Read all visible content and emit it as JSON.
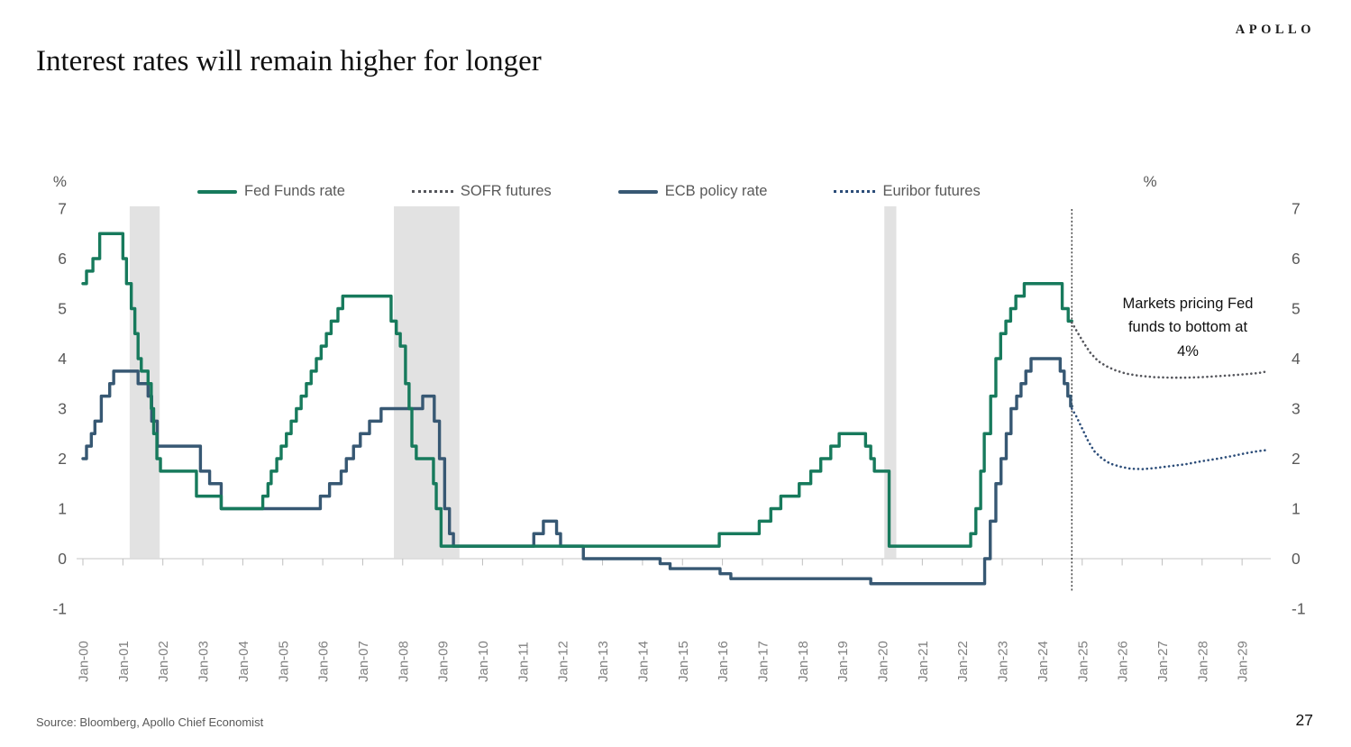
{
  "header": {
    "logo": "APOLLO",
    "title": "Interest rates will remain higher for longer"
  },
  "annotation": {
    "line1": "Markets pricing Fed",
    "line2": "funds to bottom at",
    "line3": "4%"
  },
  "footer": {
    "source": "Source: Bloomberg, Apollo Chief Economist",
    "page_number": "27"
  },
  "chart_data": {
    "type": "line",
    "title": "Interest rates will remain higher for longer",
    "y_unit_label": "%",
    "y_ticks": [
      7,
      6,
      5,
      4,
      3,
      2,
      1,
      0,
      -1
    ],
    "ylim": [
      -1,
      7
    ],
    "x_ticks": [
      "Jan-00",
      "Jan-01",
      "Jan-02",
      "Jan-03",
      "Jan-04",
      "Jan-05",
      "Jan-06",
      "Jan-07",
      "Jan-08",
      "Jan-09",
      "Jan-10",
      "Jan-11",
      "Jan-12",
      "Jan-13",
      "Jan-14",
      "Jan-15",
      "Jan-16",
      "Jan-17",
      "Jan-18",
      "Jan-19",
      "Jan-20",
      "Jan-21",
      "Jan-22",
      "Jan-23",
      "Jan-24",
      "Jan-25",
      "Jan-26",
      "Jan-27",
      "Jan-28",
      "Jan-29"
    ],
    "xlim": [
      1999.85,
      2029.75
    ],
    "grid": "baseline-only",
    "legend_position": "top",
    "recession_band_color": "#E2E2E2",
    "baseline_color": "#D9D9D9",
    "tick_color": "#BFBFBF",
    "axis_text_color": "#595959",
    "x_label_color": "#808080",
    "recession_bands": [
      [
        2001.17,
        2001.92
      ],
      [
        2007.78,
        2009.42
      ],
      [
        2020.05,
        2020.35
      ]
    ],
    "forecast_divider_year": 2024.74,
    "series": [
      {
        "name": "Fed Funds rate",
        "style": "solid",
        "color": "#177A5C",
        "points": [
          [
            2000.0,
            5.5
          ],
          [
            2000.09,
            5.75
          ],
          [
            2000.25,
            6.0
          ],
          [
            2000.42,
            6.5
          ],
          [
            2001.0,
            6.0
          ],
          [
            2001.09,
            5.5
          ],
          [
            2001.21,
            5.0
          ],
          [
            2001.3,
            4.5
          ],
          [
            2001.38,
            4.0
          ],
          [
            2001.46,
            3.75
          ],
          [
            2001.63,
            3.5
          ],
          [
            2001.71,
            3.0
          ],
          [
            2001.77,
            2.5
          ],
          [
            2001.85,
            2.0
          ],
          [
            2001.94,
            1.75
          ],
          [
            2002.84,
            1.25
          ],
          [
            2003.46,
            1.0
          ],
          [
            2004.5,
            1.25
          ],
          [
            2004.63,
            1.5
          ],
          [
            2004.71,
            1.75
          ],
          [
            2004.85,
            2.0
          ],
          [
            2004.96,
            2.25
          ],
          [
            2005.09,
            2.5
          ],
          [
            2005.21,
            2.75
          ],
          [
            2005.34,
            3.0
          ],
          [
            2005.46,
            3.25
          ],
          [
            2005.59,
            3.5
          ],
          [
            2005.71,
            3.75
          ],
          [
            2005.84,
            4.0
          ],
          [
            2005.96,
            4.25
          ],
          [
            2006.09,
            4.5
          ],
          [
            2006.21,
            4.75
          ],
          [
            2006.38,
            5.0
          ],
          [
            2006.5,
            5.25
          ],
          [
            2007.71,
            4.75
          ],
          [
            2007.84,
            4.5
          ],
          [
            2007.94,
            4.25
          ],
          [
            2008.07,
            3.5
          ],
          [
            2008.16,
            3.0
          ],
          [
            2008.23,
            2.25
          ],
          [
            2008.34,
            2.0
          ],
          [
            2008.77,
            1.5
          ],
          [
            2008.84,
            1.0
          ],
          [
            2008.96,
            0.25
          ],
          [
            2015.92,
            0.5
          ],
          [
            2016.92,
            0.75
          ],
          [
            2017.21,
            1.0
          ],
          [
            2017.46,
            1.25
          ],
          [
            2017.92,
            1.5
          ],
          [
            2018.21,
            1.75
          ],
          [
            2018.46,
            2.0
          ],
          [
            2018.71,
            2.25
          ],
          [
            2018.92,
            2.5
          ],
          [
            2019.58,
            2.25
          ],
          [
            2019.71,
            2.0
          ],
          [
            2019.8,
            1.75
          ],
          [
            2020.17,
            0.25
          ],
          [
            2022.21,
            0.5
          ],
          [
            2022.34,
            1.0
          ],
          [
            2022.46,
            1.75
          ],
          [
            2022.55,
            2.5
          ],
          [
            2022.71,
            3.25
          ],
          [
            2022.84,
            4.0
          ],
          [
            2022.96,
            4.5
          ],
          [
            2023.09,
            4.75
          ],
          [
            2023.21,
            5.0
          ],
          [
            2023.34,
            5.25
          ],
          [
            2023.55,
            5.5
          ],
          [
            2024.5,
            5.0
          ],
          [
            2024.65,
            4.75
          ],
          [
            2024.74,
            4.75
          ]
        ]
      },
      {
        "name": "SOFR futures",
        "style": "dotted",
        "color": "#54555B",
        "points": [
          [
            2024.74,
            4.72
          ],
          [
            2024.9,
            4.5
          ],
          [
            2025.05,
            4.3
          ],
          [
            2025.2,
            4.12
          ],
          [
            2025.4,
            3.95
          ],
          [
            2025.6,
            3.85
          ],
          [
            2025.85,
            3.76
          ],
          [
            2026.1,
            3.7
          ],
          [
            2026.4,
            3.66
          ],
          [
            2026.8,
            3.63
          ],
          [
            2027.2,
            3.62
          ],
          [
            2027.6,
            3.62
          ],
          [
            2028.0,
            3.63
          ],
          [
            2028.4,
            3.65
          ],
          [
            2028.8,
            3.67
          ],
          [
            2029.1,
            3.69
          ],
          [
            2029.4,
            3.71
          ],
          [
            2029.6,
            3.74
          ]
        ]
      },
      {
        "name": "ECB policy rate",
        "style": "solid",
        "color": "#375873",
        "points": [
          [
            2000.0,
            2.0
          ],
          [
            2000.09,
            2.25
          ],
          [
            2000.21,
            2.5
          ],
          [
            2000.3,
            2.75
          ],
          [
            2000.46,
            3.25
          ],
          [
            2000.67,
            3.5
          ],
          [
            2000.77,
            3.75
          ],
          [
            2001.38,
            3.5
          ],
          [
            2001.63,
            3.25
          ],
          [
            2001.72,
            2.75
          ],
          [
            2001.86,
            2.25
          ],
          [
            2002.94,
            1.75
          ],
          [
            2003.17,
            1.5
          ],
          [
            2003.46,
            1.0
          ],
          [
            2005.94,
            1.25
          ],
          [
            2006.17,
            1.5
          ],
          [
            2006.46,
            1.75
          ],
          [
            2006.59,
            2.0
          ],
          [
            2006.77,
            2.25
          ],
          [
            2006.94,
            2.5
          ],
          [
            2007.17,
            2.75
          ],
          [
            2007.46,
            3.0
          ],
          [
            2008.5,
            3.25
          ],
          [
            2008.79,
            2.75
          ],
          [
            2008.92,
            2.0
          ],
          [
            2009.05,
            1.0
          ],
          [
            2009.17,
            0.5
          ],
          [
            2009.27,
            0.25
          ],
          [
            2011.28,
            0.5
          ],
          [
            2011.52,
            0.75
          ],
          [
            2011.85,
            0.5
          ],
          [
            2011.95,
            0.25
          ],
          [
            2012.52,
            0.0
          ],
          [
            2014.44,
            -0.1
          ],
          [
            2014.69,
            -0.2
          ],
          [
            2015.94,
            -0.3
          ],
          [
            2016.21,
            -0.4
          ],
          [
            2019.71,
            -0.5
          ],
          [
            2022.56,
            0.0
          ],
          [
            2022.7,
            0.75
          ],
          [
            2022.84,
            1.5
          ],
          [
            2022.97,
            2.0
          ],
          [
            2023.1,
            2.5
          ],
          [
            2023.22,
            3.0
          ],
          [
            2023.36,
            3.25
          ],
          [
            2023.47,
            3.5
          ],
          [
            2023.59,
            3.75
          ],
          [
            2023.72,
            4.0
          ],
          [
            2024.45,
            3.75
          ],
          [
            2024.55,
            3.5
          ],
          [
            2024.64,
            3.25
          ],
          [
            2024.71,
            3.05
          ],
          [
            2024.74,
            3.05
          ]
        ]
      },
      {
        "name": "Euribor futures",
        "style": "dotted",
        "color": "#2B4C78",
        "points": [
          [
            2024.74,
            3.0
          ],
          [
            2024.85,
            2.85
          ],
          [
            2025.0,
            2.6
          ],
          [
            2025.15,
            2.35
          ],
          [
            2025.3,
            2.15
          ],
          [
            2025.5,
            2.0
          ],
          [
            2025.7,
            1.9
          ],
          [
            2025.95,
            1.84
          ],
          [
            2026.2,
            1.8
          ],
          [
            2026.5,
            1.79
          ],
          [
            2026.8,
            1.81
          ],
          [
            2027.2,
            1.85
          ],
          [
            2027.6,
            1.89
          ],
          [
            2028.0,
            1.95
          ],
          [
            2028.4,
            2.0
          ],
          [
            2028.8,
            2.06
          ],
          [
            2029.1,
            2.11
          ],
          [
            2029.4,
            2.15
          ],
          [
            2029.6,
            2.17
          ]
        ]
      }
    ]
  }
}
